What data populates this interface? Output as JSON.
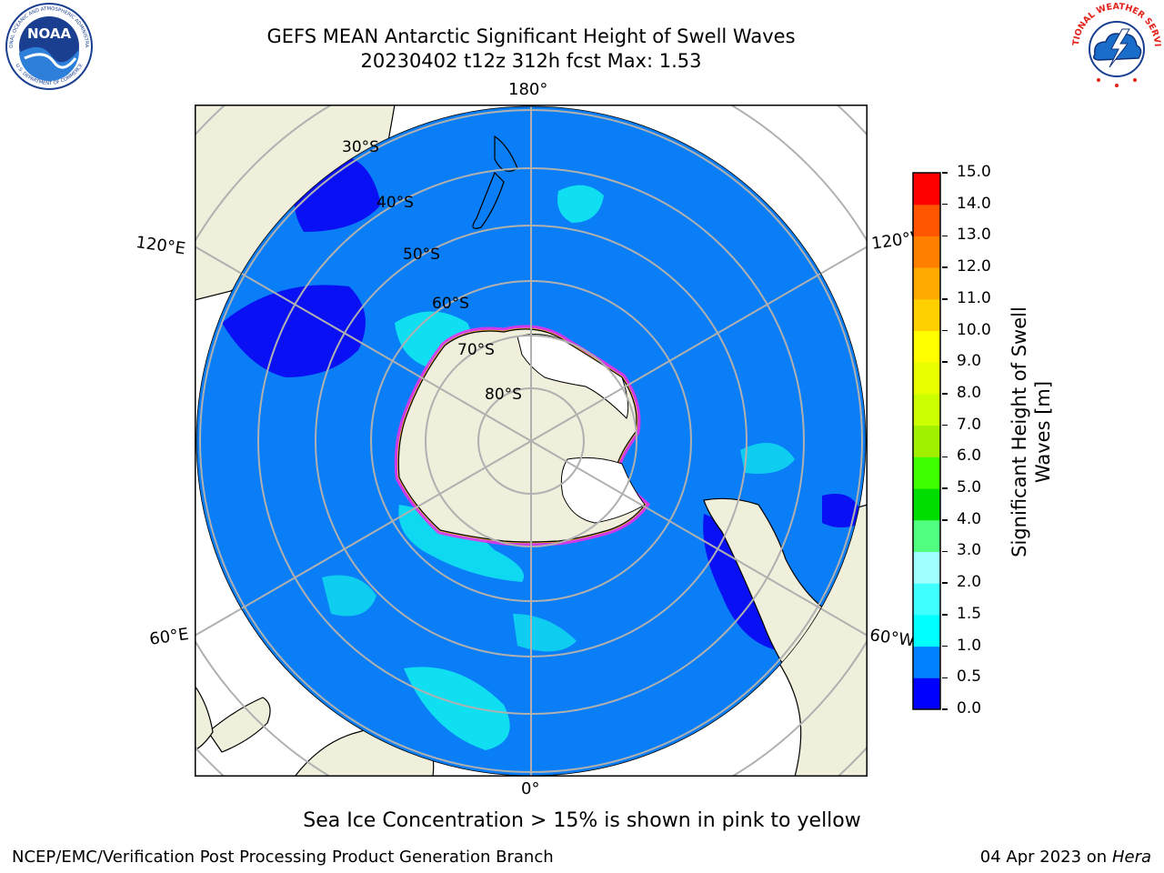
{
  "header": {
    "title_line1": "GEFS MEAN Antarctic Significant Height of Swell Waves",
    "title_line2": "20230402 t12z 312h fcst   Max: 1.53"
  },
  "logos": {
    "noaa_text": "NOAA",
    "noaa_ring_text": "NATIONAL OCEANIC AND ATMOSPHERIC ADMINISTRATION",
    "noaa_ring_bottom": "U.S. DEPARTMENT OF COMMERCE",
    "nws_ring_text": "NATIONAL WEATHER SERVICE"
  },
  "map": {
    "projection": "south-polar-stereographic",
    "lon_labels": {
      "top": "180°",
      "bottom": "0°",
      "upper_left": "120°E",
      "upper_right": "120°W",
      "lower_left": "60°E",
      "lower_right": "60°W"
    },
    "lat_labels": [
      "30°S",
      "40°S",
      "50°S",
      "60°S",
      "70°S",
      "80°S"
    ],
    "colors": {
      "ocean": "#0a7ef6",
      "ocean_low": "#0a10f4",
      "swell_mid": "#10f0f0",
      "land": "#efefdc",
      "ice_shelf": "#ffffff",
      "sea_ice_edge": "#f22fe6",
      "grid": "#b0b0b0"
    }
  },
  "colorbar": {
    "label_line1": "Significant Height of Swell",
    "label_line2": "Waves [m]",
    "ticks": [
      "0.0",
      "0.5",
      "1.0",
      "1.5",
      "2.0",
      "3.0",
      "4.0",
      "5.0",
      "6.0",
      "7.0",
      "8.0",
      "9.0",
      "10.0",
      "11.0",
      "12.0",
      "13.0",
      "14.0",
      "15.0"
    ],
    "colors": [
      "#0000ff",
      "#0080ff",
      "#00ffff",
      "#40ffff",
      "#a0ffff",
      "#50ff80",
      "#00dd00",
      "#40ff00",
      "#a0f000",
      "#ccff00",
      "#e8ff00",
      "#ffff00",
      "#ffd000",
      "#ffaa00",
      "#ff8000",
      "#ff5500",
      "#ff0000"
    ]
  },
  "caption": "Sea Ice Concentration > 15% is shown in pink to yellow",
  "footer": {
    "left": "NCEP/EMC/Verification Post Processing Product Generation Branch",
    "right_prefix": "04 Apr 2023 on ",
    "right_host": "Hera"
  }
}
